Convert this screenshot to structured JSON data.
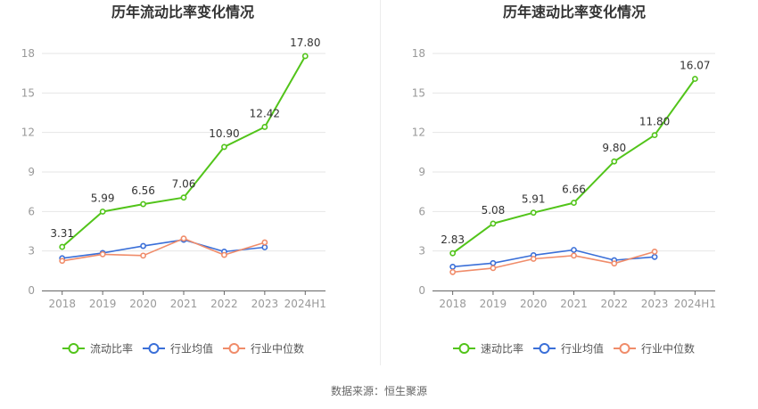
{
  "colors": {
    "primary_series": "#52c41a",
    "industry_avg": "#3a6fd8",
    "industry_median": "#f08c6a",
    "axis_label": "#999999",
    "grid": "#e6e6e6",
    "title": "#333333"
  },
  "source_text": "数据来源：恒生聚源",
  "chart_data": [
    {
      "type": "line",
      "title": "历年流动比率变化情况",
      "categories": [
        "2018",
        "2019",
        "2020",
        "2021",
        "2022",
        "2023",
        "2024H1"
      ],
      "yticks": [
        "0",
        "3",
        "6",
        "9",
        "12",
        "15",
        "18"
      ],
      "ylim": [
        0,
        18
      ],
      "grid": true,
      "legend_position": "bottom",
      "series": [
        {
          "name": "流动比率",
          "values": [
            3.31,
            5.99,
            6.56,
            7.06,
            10.9,
            12.42,
            17.8
          ],
          "labels": [
            "3.31",
            "5.99",
            "6.56",
            "7.06",
            "10.90",
            "12.42",
            "17.80"
          ]
        },
        {
          "name": "行业均值",
          "values": [
            2.45,
            2.85,
            3.38,
            3.85,
            2.95,
            3.28,
            null
          ]
        },
        {
          "name": "行业中位数",
          "values": [
            2.25,
            2.75,
            2.65,
            3.95,
            2.7,
            3.65,
            null
          ]
        }
      ]
    },
    {
      "type": "line",
      "title": "历年速动比率变化情况",
      "categories": [
        "2018",
        "2019",
        "2020",
        "2021",
        "2022",
        "2023",
        "2024H1"
      ],
      "yticks": [
        "0",
        "3",
        "6",
        "9",
        "12",
        "15",
        "18"
      ],
      "ylim": [
        0,
        18
      ],
      "grid": true,
      "legend_position": "bottom",
      "series": [
        {
          "name": "速动比率",
          "values": [
            2.83,
            5.08,
            5.91,
            6.66,
            9.8,
            11.8,
            16.07
          ],
          "labels": [
            "2.83",
            "5.08",
            "5.91",
            "6.66",
            "9.80",
            "11.80",
            "16.07"
          ]
        },
        {
          "name": "行业均值",
          "values": [
            1.8,
            2.08,
            2.68,
            3.08,
            2.3,
            2.55,
            null
          ]
        },
        {
          "name": "行业中位数",
          "values": [
            1.4,
            1.7,
            2.4,
            2.65,
            2.05,
            2.95,
            null
          ]
        }
      ]
    }
  ]
}
